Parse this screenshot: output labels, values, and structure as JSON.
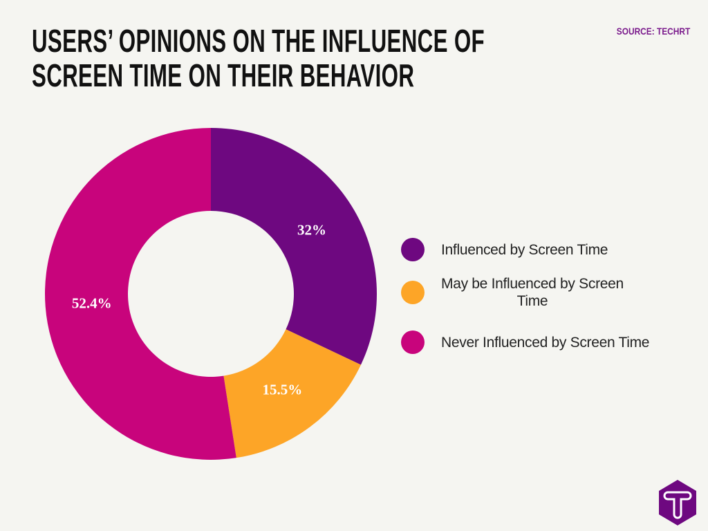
{
  "title_lines": [
    "USERS’ OPINIONS ON THE INFLUENCE OF",
    "SCREEN TIME ON THEIR BEHAVIOR"
  ],
  "source": "SOURCE: TECHRT",
  "logo_text": "T",
  "chart_data": {
    "type": "donut",
    "title": "USERS’ OPINIONS ON THE INFLUENCE OF SCREEN TIME ON THEIR BEHAVIOR",
    "legend_position": "right",
    "slices": [
      {
        "name": "Influenced by Screen Time",
        "value": 32,
        "label": "32%",
        "color": "#6e0880"
      },
      {
        "name": "May be Influenced by Screen Time",
        "value": 15.5,
        "label": "15.5%",
        "color": "#fda527"
      },
      {
        "name": "Never Influenced by Screen Time",
        "value": 52.4,
        "label": "52.4%",
        "color": "#c8047c"
      }
    ]
  },
  "legend": [
    {
      "lines": [
        "Influenced by Screen Time"
      ]
    },
    {
      "lines": [
        "May be Influenced by Screen",
        "Time"
      ]
    },
    {
      "lines": [
        "Never Influenced by Screen Time"
      ]
    }
  ]
}
